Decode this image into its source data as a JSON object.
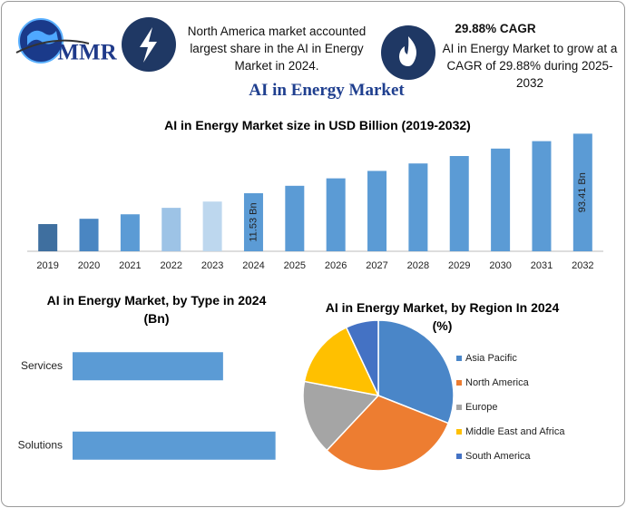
{
  "header": {
    "logo": "MMR",
    "info1": "North America market accounted largest share in the AI in Energy Market in 2024.",
    "info2_title": "29.88% CAGR",
    "info2": "AI in Energy Market to grow at a CAGR of 29.88% during 2025-2032"
  },
  "title": "AI in Energy Market",
  "chart_data": [
    {
      "type": "bar",
      "title": "AI in Energy Market size in USD Billion (2019-2032)",
      "categories": [
        "2019",
        "2020",
        "2021",
        "2022",
        "2023",
        "2024",
        "2025",
        "2026",
        "2027",
        "2028",
        "2029",
        "2030",
        "2031",
        "2032"
      ],
      "values": [
        3.9,
        4.7,
        5.5,
        6.9,
        8.6,
        11.53,
        14.97,
        19.45,
        25.26,
        32.81,
        42.61,
        55.34,
        71.88,
        93.41
      ],
      "value_labels": [
        null,
        null,
        null,
        null,
        null,
        "11.53 Bn",
        null,
        null,
        null,
        null,
        null,
        null,
        null,
        "93.41 Bn"
      ],
      "colors": [
        "#3f6f9f",
        "#4a86c2",
        "#5b9bd5",
        "#9dc3e6",
        "#bdd7ee",
        "#5b9bd5",
        "#5b9bd5",
        "#5b9bd5",
        "#5b9bd5",
        "#5b9bd5",
        "#5b9bd5",
        "#5b9bd5",
        "#5b9bd5",
        "#5b9bd5"
      ],
      "ylim": [
        1.5,
        130
      ],
      "log_scale": true
    },
    {
      "type": "hbar",
      "title": "AI in Energy Market, by Type in 2024 (Bn)",
      "categories": [
        "Services",
        "Solutions"
      ],
      "values": [
        4.91,
        6.62
      ],
      "color": "#5b9bd5",
      "xlim": [
        0,
        7.4
      ]
    },
    {
      "type": "pie",
      "title": "AI in Energy Market, by Region In 2024 (%)",
      "categories": [
        "Asia Pacific",
        "North America",
        "Europe",
        "Middle East and Africa",
        "South America"
      ],
      "values": [
        31,
        31,
        16,
        15,
        7
      ],
      "colors": [
        "#4a86c8",
        "#ed7d31",
        "#a5a5a5",
        "#ffc000",
        "#4472c4"
      ],
      "legend": "right"
    }
  ]
}
